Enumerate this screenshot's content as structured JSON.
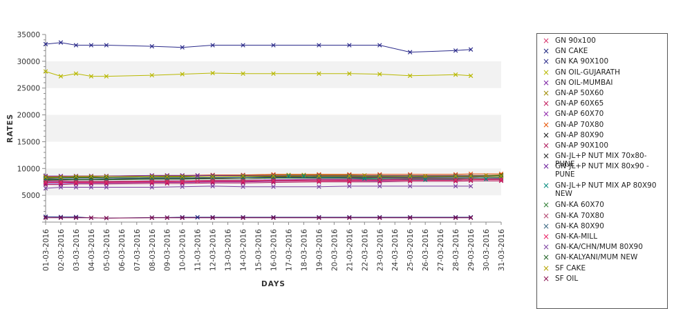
{
  "chart_data": {
    "type": "line",
    "xlabel": "DAYS",
    "ylabel": "RATES",
    "ylim": [
      0,
      35000
    ],
    "yticks": [
      5000,
      10000,
      15000,
      20000,
      25000,
      30000,
      35000
    ],
    "grid": "alternating horizontal bands",
    "legend_position": "right",
    "categories": [
      "01-03-2016",
      "02-03-2016",
      "03-03-2016",
      "04-03-2016",
      "05-03-2016",
      "06-03-2016",
      "07-03-2016",
      "08-03-2016",
      "09-03-2016",
      "10-03-2016",
      "11-03-2016",
      "12-03-2016",
      "13-03-2016",
      "14-03-2016",
      "15-03-2016",
      "16-03-2016",
      "17-03-2016",
      "18-03-2016",
      "19-03-2016",
      "20-03-2016",
      "21-03-2016",
      "22-03-2016",
      "23-03-2016",
      "24-03-2016",
      "25-03-2016",
      "26-03-2016",
      "27-03-2016",
      "28-03-2016",
      "29-03-2016",
      "30-03-2016",
      "31-03-2016"
    ],
    "series": [
      {
        "name": "GN 90x100",
        "color": "#d6336c",
        "values": [
          7600,
          7550,
          7500,
          7500,
          7500,
          null,
          null,
          7600,
          7600,
          7650,
          7650,
          7700,
          null,
          7700,
          null,
          7700,
          null,
          null,
          7750,
          null,
          7800,
          null,
          7800,
          null,
          7850,
          null,
          null,
          7900,
          7900,
          null,
          null
        ]
      },
      {
        "name": "GN CAKE",
        "color": "#1a237e",
        "values": [
          1000,
          950,
          950,
          800,
          750,
          null,
          null,
          850,
          850,
          900,
          900,
          900,
          null,
          900,
          null,
          900,
          null,
          null,
          900,
          null,
          900,
          null,
          900,
          null,
          900,
          null,
          null,
          900,
          900,
          null,
          null
        ]
      },
      {
        "name": "GN KA 90X100",
        "color": "#2a2a8a",
        "values": [
          33200,
          33500,
          33000,
          33000,
          33000,
          null,
          null,
          32800,
          null,
          32600,
          null,
          33000,
          null,
          33000,
          null,
          33000,
          null,
          null,
          33000,
          null,
          33000,
          null,
          33000,
          null,
          31700,
          null,
          null,
          32000,
          32200,
          null,
          null
        ]
      },
      {
        "name": "GN OIL-GUJARATH",
        "color": "#b8b800",
        "values": [
          28100,
          27200,
          27700,
          27200,
          27200,
          null,
          null,
          27400,
          null,
          27600,
          null,
          27800,
          null,
          27700,
          null,
          27700,
          null,
          null,
          27700,
          null,
          27700,
          null,
          27600,
          null,
          27300,
          null,
          null,
          27500,
          27300,
          null,
          null
        ]
      },
      {
        "name": "GN OIL-MUMBAI",
        "color": "#7b1fa2",
        "values": [
          7200,
          7200,
          7300,
          7300,
          7300,
          null,
          null,
          7400,
          7400,
          7400,
          null,
          7500,
          null,
          7500,
          null,
          7600,
          null,
          null,
          7700,
          null,
          7700,
          null,
          7700,
          null,
          7800,
          null,
          null,
          7800,
          7900,
          null,
          8000
        ]
      },
      {
        "name": "GN-AP 50X60",
        "color": "#9e8a00",
        "values": [
          8200,
          8300,
          8400,
          8400,
          8500,
          null,
          null,
          8500,
          8600,
          8600,
          8700,
          8700,
          null,
          8700,
          null,
          8800,
          8800,
          8800,
          8800,
          null,
          8800,
          8700,
          8700,
          null,
          8600,
          8600,
          null,
          8700,
          8700,
          8700,
          8800
        ]
      },
      {
        "name": "GN-AP 60X65",
        "color": "#c2185b",
        "values": [
          7800,
          7800,
          7900,
          7900,
          7900,
          null,
          null,
          8000,
          8000,
          8000,
          null,
          8100,
          null,
          8100,
          null,
          8200,
          null,
          null,
          8300,
          null,
          8300,
          null,
          8300,
          null,
          8300,
          null,
          null,
          8400,
          8400,
          null,
          8500
        ]
      },
      {
        "name": "GN-AP 60X70",
        "color": "#8e24aa",
        "values": [
          7500,
          7500,
          7600,
          7600,
          7600,
          null,
          null,
          7700,
          7700,
          7700,
          null,
          7800,
          null,
          7800,
          null,
          7900,
          null,
          null,
          8000,
          null,
          8000,
          null,
          8000,
          null,
          8100,
          null,
          null,
          8100,
          8200,
          null,
          8200
        ]
      },
      {
        "name": "GN-AP 70X80",
        "color": "#e65100",
        "values": [
          8500,
          8500,
          8600,
          8600,
          8600,
          null,
          null,
          8700,
          8700,
          8700,
          null,
          8800,
          null,
          8800,
          null,
          8900,
          null,
          null,
          8900,
          null,
          8900,
          null,
          8900,
          null,
          8900,
          null,
          null,
          8900,
          9000,
          null,
          9000
        ]
      },
      {
        "name": "GN-AP 80X90",
        "color": "#111111",
        "values": [
          8000,
          8000,
          8100,
          8100,
          8100,
          null,
          null,
          8200,
          8200,
          8200,
          null,
          8300,
          null,
          8300,
          null,
          8400,
          null,
          null,
          8500,
          null,
          8500,
          null,
          8500,
          null,
          8600,
          null,
          null,
          8600,
          8600,
          null,
          8700
        ]
      },
      {
        "name": "GN-AP 90X100",
        "color": "#ad1457",
        "values": [
          7000,
          7000,
          7100,
          7100,
          7100,
          null,
          null,
          7200,
          7200,
          7200,
          null,
          7300,
          null,
          7300,
          null,
          7400,
          null,
          null,
          7500,
          null,
          7500,
          null,
          7500,
          null,
          7600,
          null,
          null,
          7600,
          7700,
          null,
          7700
        ]
      },
      {
        "name": "GN-JL+P NUT MIX 70x80-PUNE",
        "color": "#222222",
        "values": [
          7800,
          7900,
          7900,
          7900,
          8000,
          null,
          null,
          8100,
          8100,
          8100,
          null,
          8200,
          null,
          8300,
          null,
          8300,
          null,
          null,
          8300,
          null,
          8400,
          null,
          8400,
          null,
          8400,
          null,
          null,
          8500,
          8500,
          null,
          8600
        ]
      },
      {
        "name": "GN-JL+P NUT MIX 80x90 - PUNE",
        "color": "#6a1b9a",
        "values": [
          8600,
          8600,
          8600,
          8600,
          8600,
          null,
          null,
          8700,
          8700,
          8700,
          8700,
          8700,
          null,
          8700,
          null,
          8700,
          null,
          null,
          8700,
          null,
          8700,
          null,
          8700,
          null,
          8700,
          null,
          null,
          8700,
          8700,
          null,
          8700
        ]
      },
      {
        "name": "GN-JL+P NUT MIX AP 80X90 NEW",
        "color": "#00897b",
        "values": [
          null,
          null,
          null,
          null,
          null,
          null,
          null,
          null,
          null,
          null,
          null,
          null,
          null,
          null,
          null,
          8500,
          8600,
          8600,
          8300,
          null,
          8200,
          8100,
          8000,
          null,
          7900,
          7900,
          null,
          7900,
          7900,
          8000,
          8000
        ]
      },
      {
        "name": "GN-KA 60X70",
        "color": "#2e7d32",
        "values": [
          7900,
          7900,
          7900,
          7900,
          7900,
          null,
          null,
          8000,
          8000,
          8000,
          null,
          8100,
          null,
          8100,
          null,
          8200,
          null,
          null,
          8200,
          null,
          8200,
          null,
          8200,
          null,
          8200,
          null,
          null,
          8200,
          8200,
          null,
          8300
        ]
      },
      {
        "name": "GN-KA 70X80",
        "color": "#b0416b",
        "values": [
          7600,
          7600,
          7600,
          7600,
          7600,
          null,
          null,
          7700,
          7700,
          7700,
          null,
          7800,
          null,
          7800,
          null,
          7800,
          null,
          null,
          7900,
          null,
          7900,
          null,
          7900,
          null,
          8000,
          null,
          null,
          8000,
          8000,
          null,
          8100
        ]
      },
      {
        "name": "GN-KA 80X90",
        "color": "#37657f",
        "values": [
          8100,
          8100,
          8100,
          8100,
          8100,
          null,
          null,
          8200,
          8200,
          8200,
          null,
          8300,
          null,
          8300,
          null,
          8300,
          null,
          null,
          8400,
          null,
          8400,
          null,
          8400,
          null,
          8400,
          null,
          null,
          8400,
          8400,
          null,
          8500
        ]
      },
      {
        "name": "GN-KA-MILL",
        "color": "#e91e63",
        "values": [
          7400,
          7400,
          7400,
          7400,
          7400,
          null,
          null,
          7500,
          7500,
          7500,
          null,
          7600,
          null,
          7600,
          null,
          7700,
          null,
          null,
          7700,
          null,
          7700,
          null,
          7800,
          null,
          7800,
          null,
          null,
          7800,
          7900,
          null,
          7900
        ]
      },
      {
        "name": "GN-KA/CHN/MUM 80X90",
        "color": "#7b3fa0",
        "values": [
          6300,
          6500,
          6500,
          6500,
          6500,
          null,
          null,
          6500,
          null,
          6600,
          null,
          6700,
          null,
          6600,
          null,
          6600,
          null,
          null,
          6600,
          null,
          6700,
          null,
          6700,
          null,
          6700,
          null,
          null,
          6700,
          6700,
          null,
          null
        ]
      },
      {
        "name": "GN-KALYANI/MUM NEW",
        "color": "#1b5e20",
        "values": [
          8300,
          8300,
          8300,
          8300,
          8300,
          null,
          null,
          8400,
          8400,
          8400,
          null,
          8500,
          null,
          8500,
          null,
          8500,
          null,
          null,
          8600,
          null,
          8600,
          null,
          8600,
          null,
          8600,
          null,
          null,
          8600,
          8600,
          null,
          8700
        ]
      },
      {
        "name": "SF CAKE",
        "color": "#b5a300",
        "values": [
          8400,
          8400,
          8500,
          8500,
          8500,
          null,
          null,
          8500,
          8500,
          8500,
          null,
          8500,
          null,
          8600,
          null,
          8600,
          null,
          null,
          8600,
          null,
          8600,
          null,
          8600,
          null,
          8600,
          null,
          null,
          8600,
          8600,
          null,
          8600
        ]
      },
      {
        "name": "SF OIL",
        "color": "#880e4f",
        "values": [
          800,
          800,
          800,
          800,
          750,
          null,
          null,
          800,
          800,
          800,
          null,
          800,
          null,
          800,
          null,
          800,
          null,
          null,
          800,
          null,
          800,
          null,
          800,
          null,
          800,
          null,
          null,
          800,
          800,
          null,
          null
        ]
      }
    ]
  }
}
